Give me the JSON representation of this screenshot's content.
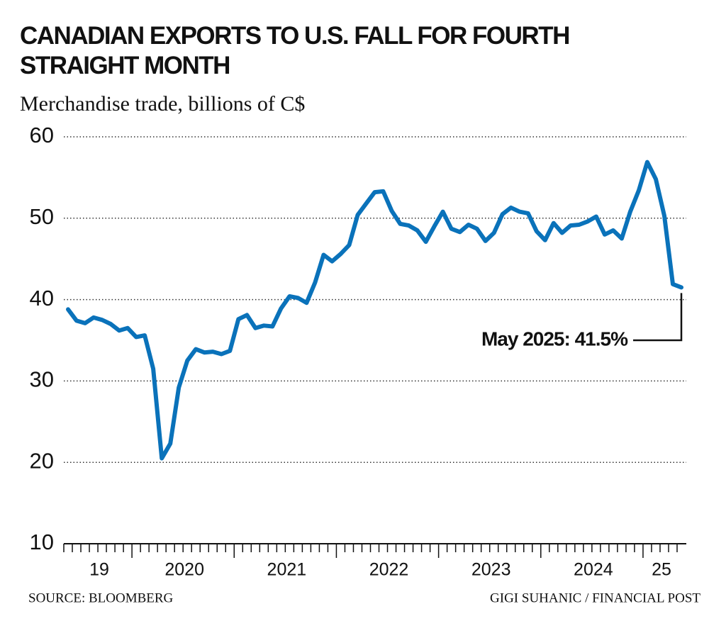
{
  "chart_data": {
    "type": "line",
    "title": "CANADIAN EXPORTS TO U.S. FALL FOR FOURTH STRAIGHT MONTH",
    "subtitle": "Merchandise trade, billions of C$",
    "source": "SOURCE: BLOOMBERG",
    "credit": "GIGI SUHANIC / FINANCIAL POST",
    "annotation": "May 2025: 41.5%",
    "categories": [
      null,
      null,
      null,
      null,
      "19",
      null,
      null,
      null,
      null,
      null,
      null,
      null,
      null,
      null,
      "2020",
      null,
      null,
      null,
      null,
      null,
      null,
      null,
      null,
      null,
      null,
      null,
      "2021",
      null,
      null,
      null,
      null,
      null,
      null,
      null,
      null,
      null,
      null,
      null,
      "2022",
      null,
      null,
      null,
      null,
      null,
      null,
      null,
      null,
      null,
      null,
      null,
      "2023",
      null,
      null,
      null,
      null,
      null,
      null,
      null,
      null,
      null,
      null,
      null,
      "2024",
      null,
      null,
      null,
      null,
      null,
      null,
      null,
      "25",
      null,
      null
    ],
    "series": [
      {
        "name": "Exports to U.S.",
        "color": "#0a72ba",
        "values": [
          38.8,
          37.4,
          37.1,
          37.8,
          37.5,
          37.0,
          36.2,
          36.5,
          35.4,
          35.6,
          31.5,
          20.5,
          22.3,
          29.2,
          32.5,
          33.9,
          33.5,
          33.6,
          33.3,
          33.7,
          37.6,
          38.1,
          36.5,
          36.8,
          36.7,
          38.9,
          40.4,
          40.2,
          39.6,
          42.1,
          45.5,
          44.7,
          45.6,
          46.7,
          50.4,
          51.8,
          53.2,
          53.3,
          50.9,
          49.3,
          49.1,
          48.5,
          47.1,
          49.0,
          50.8,
          48.7,
          48.3,
          49.2,
          48.7,
          47.2,
          48.2,
          50.5,
          51.3,
          50.8,
          50.6,
          48.4,
          47.3,
          49.4,
          48.2,
          49.1,
          49.2,
          49.6,
          50.2,
          48.0,
          48.5,
          47.5,
          50.8,
          53.4,
          56.9,
          54.8,
          50.3,
          41.9,
          41.5
        ]
      }
    ],
    "ylim": [
      10,
      60
    ],
    "yticks": [
      10,
      20,
      30,
      40,
      50,
      60
    ],
    "grid": true
  }
}
